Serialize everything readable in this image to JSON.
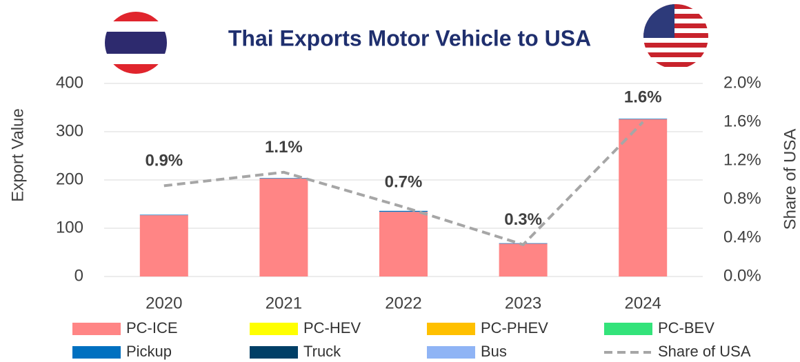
{
  "chart_data": {
    "type": "bar",
    "title": "Thai Exports Motor Vehicle to USA",
    "y_label": "Export Value",
    "y2_label": "Share of USA",
    "categories": [
      "2020",
      "2021",
      "2022",
      "2023",
      "2024"
    ],
    "ylim": [
      0,
      400
    ],
    "yticks": [
      0,
      100,
      200,
      300,
      400
    ],
    "y2lim": [
      0,
      2.0
    ],
    "y2ticks": [
      {
        "value": 0,
        "label": "0.0%"
      },
      {
        "value": 0.4,
        "label": "0.4%"
      },
      {
        "value": 0.8,
        "label": "0.8%"
      },
      {
        "value": 1.2,
        "label": "1.2%"
      },
      {
        "value": 1.6,
        "label": "1.6%"
      },
      {
        "value": 2.0,
        "label": "2.0%"
      }
    ],
    "series": [
      {
        "name": "PC-ICE",
        "color": "#ff8585",
        "values": [
          127,
          203,
          134,
          68,
          326
        ]
      },
      {
        "name": "PC-HEV",
        "color": "#ffff00",
        "values": [
          0,
          0,
          0,
          0,
          0
        ]
      },
      {
        "name": "PC-PHEV",
        "color": "#ffc000",
        "values": [
          0,
          0,
          0,
          0,
          0
        ]
      },
      {
        "name": "PC-BEV",
        "color": "#33e37a",
        "values": [
          0,
          0,
          0,
          0,
          0
        ]
      },
      {
        "name": "Pickup",
        "color": "#0070c0",
        "values": [
          1,
          1,
          2,
          1,
          1
        ]
      },
      {
        "name": "Truck",
        "color": "#003f66",
        "values": [
          0,
          0,
          0,
          0,
          0
        ]
      },
      {
        "name": "Bus",
        "color": "#8fb4f5",
        "values": [
          0,
          0,
          0,
          0,
          0
        ]
      },
      {
        "name": "Share of USA",
        "color": "#a6a6a6",
        "type": "line",
        "axis": "y2",
        "dashed": true,
        "values": [
          0.94,
          1.08,
          0.72,
          0.33,
          1.6
        ],
        "value_labels": [
          "0.9%",
          "1.1%",
          "0.7%",
          "0.3%",
          "1.6%"
        ]
      }
    ]
  }
}
